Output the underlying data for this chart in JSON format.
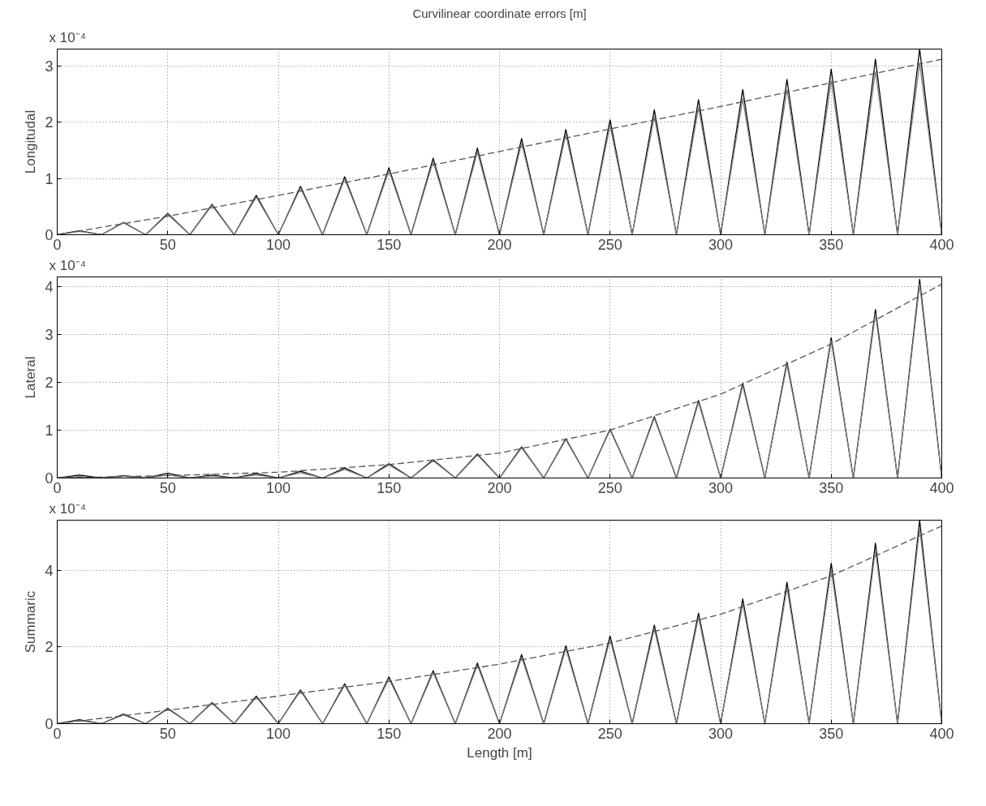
{
  "chart_data": [
    {
      "type": "line",
      "title": "Curvilinear coordinate errors [m]",
      "ylabel": "Longitudal",
      "annotations": [
        "x 10⁻⁴"
      ],
      "xlim": [
        0,
        400
      ],
      "xticks": [
        0,
        50,
        100,
        150,
        200,
        250,
        300,
        350,
        400
      ],
      "ylim": [
        0,
        3.3
      ],
      "yticks": [
        0,
        1,
        2,
        3
      ],
      "grid": true,
      "marker": "none",
      "series": [
        {
          "color": "#000000",
          "line_style": "solid",
          "x": [
            0,
            10,
            20,
            30,
            40,
            50,
            60,
            70,
            80,
            90,
            100,
            110,
            120,
            130,
            140,
            150,
            160,
            170,
            180,
            190,
            200,
            210,
            220,
            230,
            240,
            250,
            260,
            270,
            280,
            290,
            300,
            310,
            320,
            330,
            340,
            350,
            360,
            370,
            380,
            390,
            400
          ],
          "values": [
            0,
            0.07,
            0,
            0.22,
            0,
            0.38,
            0,
            0.54,
            0,
            0.7,
            0,
            0.86,
            0,
            1.03,
            0,
            1.19,
            0,
            1.36,
            0,
            1.54,
            0,
            1.71,
            0,
            1.87,
            0,
            2.04,
            0,
            2.22,
            0,
            2.4,
            0,
            2.58,
            0,
            2.76,
            0,
            2.94,
            0,
            3.12,
            0,
            3.3,
            0
          ]
        },
        {
          "color": "#808080",
          "line_style": "solid",
          "x": [
            0,
            10,
            20,
            30,
            40,
            50,
            60,
            70,
            80,
            90,
            100,
            110,
            120,
            130,
            140,
            150,
            160,
            170,
            180,
            190,
            200,
            210,
            220,
            230,
            240,
            250,
            260,
            270,
            280,
            290,
            300,
            310,
            320,
            330,
            340,
            350,
            360,
            370,
            380,
            390,
            400
          ],
          "values": [
            0,
            0.06,
            0,
            0.21,
            0,
            0.36,
            0,
            0.52,
            0,
            0.67,
            0,
            0.83,
            0,
            0.99,
            0,
            1.14,
            0,
            1.3,
            0,
            1.47,
            0,
            1.63,
            0,
            1.78,
            0,
            1.94,
            0,
            2.1,
            0,
            2.26,
            0,
            2.42,
            0,
            2.58,
            0,
            2.74,
            0,
            2.9,
            0,
            3.05,
            0
          ]
        },
        {
          "color": "#555555",
          "line_style": "dashed",
          "x": [
            0,
            50,
            100,
            150,
            200,
            250,
            300,
            350,
            400
          ],
          "values": [
            0,
            0.33,
            0.7,
            1.08,
            1.48,
            1.88,
            2.28,
            2.7,
            3.12
          ]
        }
      ]
    },
    {
      "type": "line",
      "ylabel": "Lateral",
      "annotations": [
        "x 10⁻⁴"
      ],
      "xlim": [
        0,
        400
      ],
      "xticks": [
        0,
        50,
        100,
        150,
        200,
        250,
        300,
        350,
        400
      ],
      "ylim": [
        0,
        4.2
      ],
      "yticks": [
        0,
        1,
        2,
        3,
        4
      ],
      "grid": true,
      "marker": "none",
      "series": [
        {
          "color": "#000000",
          "line_style": "solid",
          "x": [
            0,
            10,
            20,
            30,
            40,
            50,
            60,
            70,
            80,
            90,
            100,
            110,
            120,
            130,
            140,
            150,
            160,
            170,
            180,
            190,
            200,
            210,
            220,
            230,
            240,
            250,
            260,
            270,
            280,
            290,
            300,
            310,
            320,
            330,
            340,
            350,
            360,
            370,
            380,
            390,
            400
          ],
          "values": [
            0,
            0.06,
            0,
            0.05,
            0,
            0.1,
            0,
            0.06,
            0,
            0.09,
            0,
            0.14,
            0,
            0.21,
            0,
            0.3,
            0,
            0.38,
            0,
            0.5,
            0,
            0.65,
            0,
            0.82,
            0,
            1.02,
            0,
            1.28,
            0,
            1.62,
            0,
            1.98,
            0,
            2.42,
            0,
            2.93,
            0,
            3.52,
            0,
            4.15,
            0
          ]
        },
        {
          "color": "#808080",
          "line_style": "solid",
          "x": [
            0,
            10,
            20,
            30,
            40,
            50,
            60,
            70,
            80,
            90,
            100,
            110,
            120,
            130,
            140,
            150,
            160,
            170,
            180,
            190,
            200,
            210,
            220,
            230,
            240,
            250,
            260,
            270,
            280,
            290,
            300,
            310,
            320,
            330,
            340,
            350,
            360,
            370,
            380,
            390,
            400
          ],
          "values": [
            0,
            0.03,
            0,
            0.04,
            0,
            0.06,
            0,
            0.04,
            0,
            0.06,
            0,
            0.11,
            0,
            0.18,
            0,
            0.27,
            0,
            0.36,
            0,
            0.48,
            0,
            0.63,
            0,
            0.8,
            0,
            1.0,
            0,
            1.25,
            0,
            1.58,
            0,
            1.93,
            0,
            2.36,
            0,
            2.86,
            0,
            3.43,
            0,
            4.05,
            0
          ]
        },
        {
          "color": "#555555",
          "line_style": "dashed",
          "x": [
            0,
            50,
            100,
            150,
            200,
            250,
            300,
            350,
            400
          ],
          "values": [
            0,
            0.05,
            0.12,
            0.28,
            0.52,
            1.0,
            1.75,
            2.8,
            4.05
          ]
        }
      ]
    },
    {
      "type": "line",
      "ylabel": "Summaric",
      "xlabel": "Length [m]",
      "annotations": [
        "x 10⁻⁴"
      ],
      "xlim": [
        0,
        400
      ],
      "xticks": [
        0,
        50,
        100,
        150,
        200,
        250,
        300,
        350,
        400
      ],
      "ylim": [
        0,
        5.3
      ],
      "yticks": [
        0,
        2,
        4
      ],
      "grid": true,
      "marker": "none",
      "series": [
        {
          "color": "#000000",
          "line_style": "solid",
          "x": [
            0,
            10,
            20,
            30,
            40,
            50,
            60,
            70,
            80,
            90,
            100,
            110,
            120,
            130,
            140,
            150,
            160,
            170,
            180,
            190,
            200,
            210,
            220,
            230,
            240,
            250,
            260,
            270,
            280,
            290,
            300,
            310,
            320,
            330,
            340,
            350,
            360,
            370,
            380,
            390,
            400
          ],
          "values": [
            0,
            0.1,
            0,
            0.25,
            0,
            0.4,
            0,
            0.55,
            0,
            0.72,
            0,
            0.88,
            0,
            1.04,
            0,
            1.22,
            0,
            1.38,
            0,
            1.58,
            0,
            1.8,
            0,
            2.03,
            0,
            2.28,
            0,
            2.57,
            0,
            2.88,
            0,
            3.25,
            0,
            3.68,
            0,
            4.18,
            0,
            4.7,
            0,
            5.3,
            0
          ]
        },
        {
          "color": "#808080",
          "line_style": "solid",
          "x": [
            0,
            10,
            20,
            30,
            40,
            50,
            60,
            70,
            80,
            90,
            100,
            110,
            120,
            130,
            140,
            150,
            160,
            170,
            180,
            190,
            200,
            210,
            220,
            230,
            240,
            250,
            260,
            270,
            280,
            290,
            300,
            310,
            320,
            330,
            340,
            350,
            360,
            370,
            380,
            390,
            400
          ],
          "values": [
            0,
            0.08,
            0,
            0.23,
            0,
            0.38,
            0,
            0.53,
            0,
            0.69,
            0,
            0.85,
            0,
            1.0,
            0,
            1.17,
            0,
            1.33,
            0,
            1.52,
            0,
            1.73,
            0,
            1.95,
            0,
            2.2,
            0,
            2.47,
            0,
            2.77,
            0,
            3.12,
            0,
            3.54,
            0,
            4.02,
            0,
            4.52,
            0,
            5.1,
            0
          ]
        },
        {
          "color": "#555555",
          "line_style": "dashed",
          "x": [
            0,
            50,
            100,
            150,
            200,
            250,
            300,
            350,
            400
          ],
          "values": [
            0,
            0.35,
            0.72,
            1.1,
            1.55,
            2.1,
            2.85,
            3.85,
            5.15
          ]
        }
      ]
    }
  ]
}
